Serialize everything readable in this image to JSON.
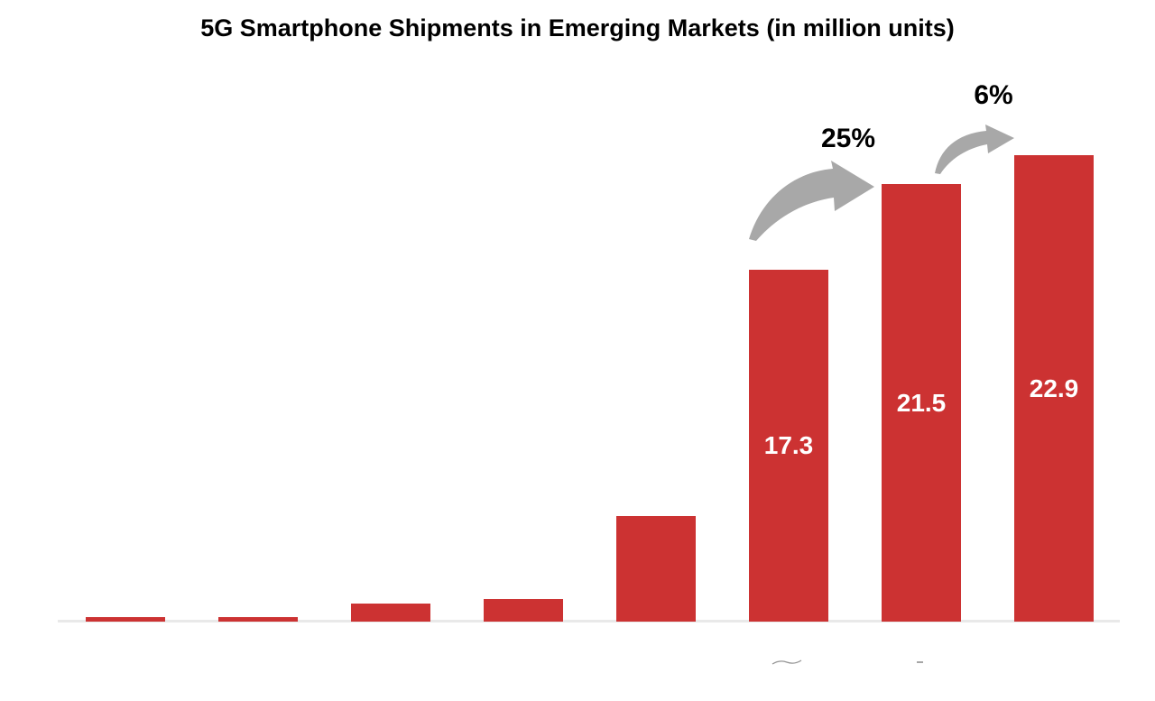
{
  "chart_data": {
    "type": "bar",
    "title": "5G Smartphone Shipments in Emerging Markets (in million units)",
    "values": [
      0.2,
      0.2,
      0.9,
      1.1,
      5.2,
      17.3,
      21.5,
      22.9
    ],
    "data_labels": [
      "",
      "",
      "",
      "",
      "",
      "17.3",
      "21.5",
      "22.9"
    ],
    "annotations": [
      {
        "text": "25%",
        "between_bars": [
          6,
          7
        ]
      },
      {
        "text": "6%",
        "between_bars": [
          7,
          8
        ]
      }
    ],
    "xlabel": "",
    "ylabel": "",
    "ylim": [
      0,
      24
    ],
    "grid": false,
    "legend": "none",
    "categories_shown": false,
    "colors": {
      "bar": "#CC3232",
      "arrow": "#A8A8A8",
      "data_label": "#FFFFFF",
      "title": "#000000",
      "baseline": "#E9E9E9"
    }
  }
}
